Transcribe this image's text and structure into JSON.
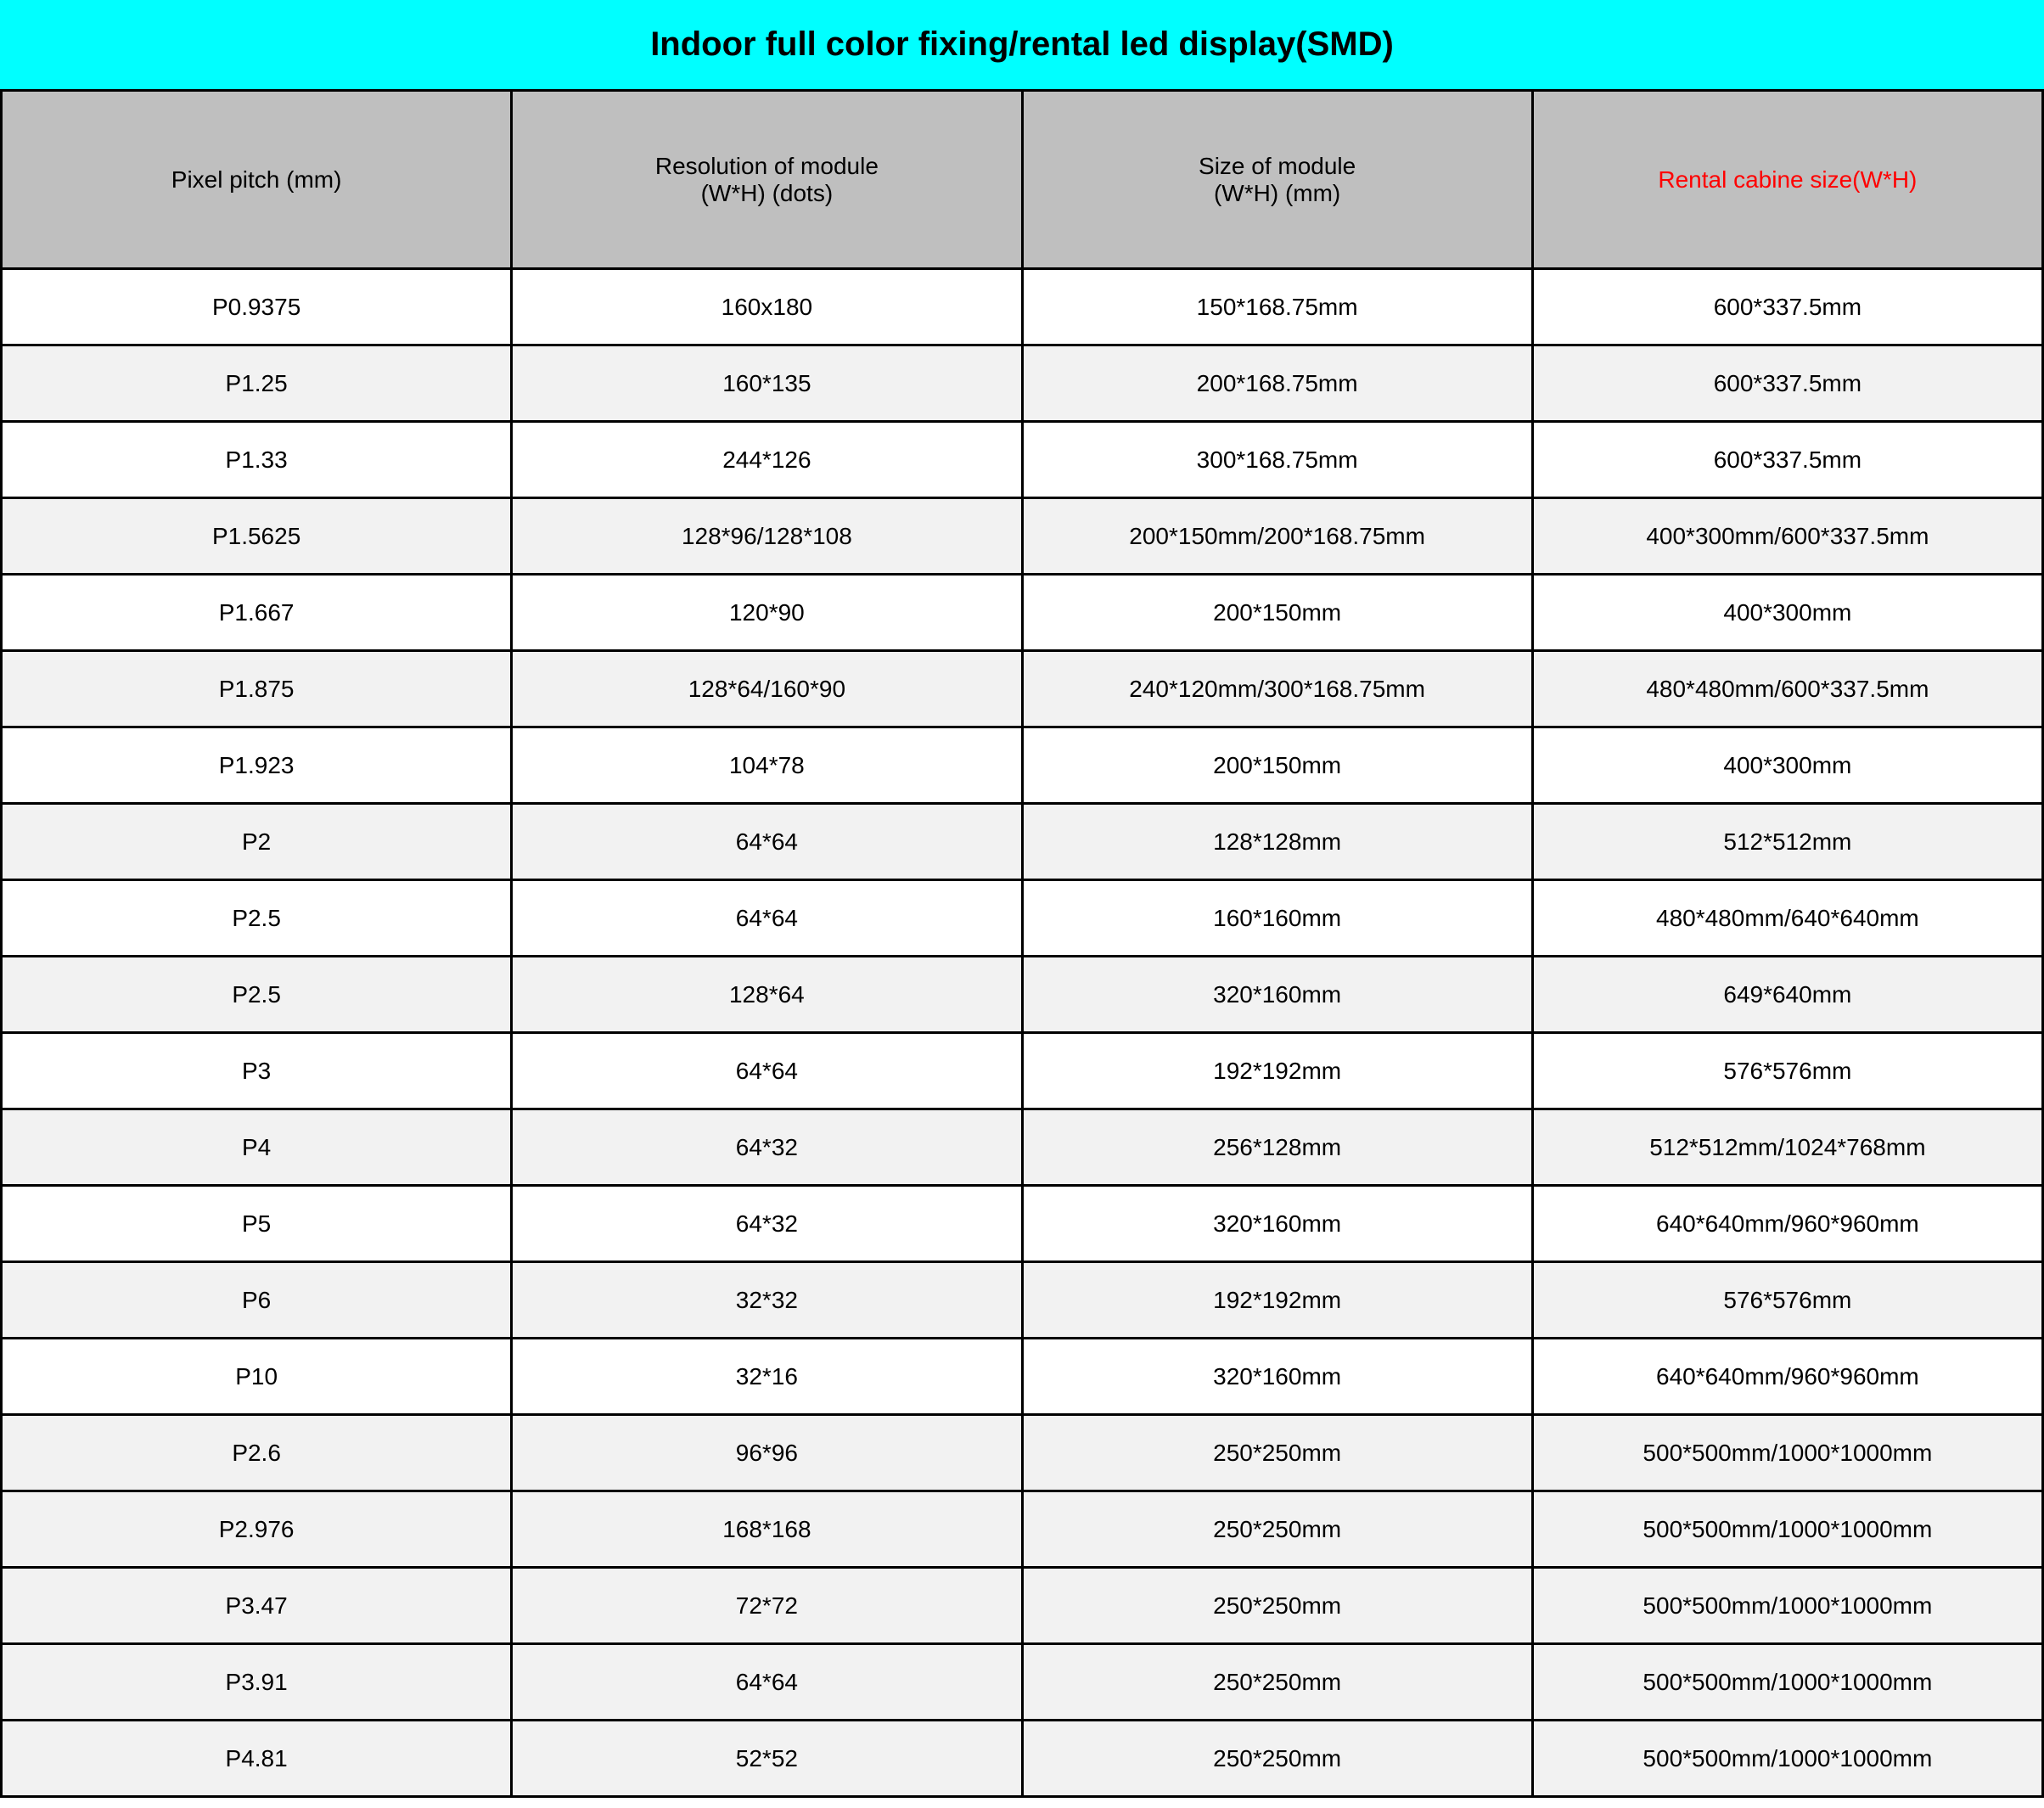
{
  "title": "Indoor full color fixing/rental led display(SMD)",
  "colors": {
    "title_bg": "#00ffff",
    "header_bg": "#bfbfbf",
    "row_white": "#ffffff",
    "row_grey": "#f2f2f2",
    "border": "#000000",
    "text": "#000000",
    "red_text": "#ff0000"
  },
  "columns": [
    {
      "label": "Pixel pitch (mm)",
      "red": false
    },
    {
      "label": "Resolution of module\n(W*H) (dots)",
      "red": false
    },
    {
      "label": "Size of module\n(W*H) (mm)",
      "red": false
    },
    {
      "label": "Rental cabine size(W*H)",
      "red": true
    }
  ],
  "rows": [
    {
      "bg": "white",
      "cells": [
        "P0.9375",
        "160x180",
        "150*168.75mm",
        "600*337.5mm"
      ]
    },
    {
      "bg": "grey",
      "cells": [
        "P1.25",
        "160*135",
        "200*168.75mm",
        "600*337.5mm"
      ]
    },
    {
      "bg": "white",
      "cells": [
        "P1.33",
        "244*126",
        "300*168.75mm",
        "600*337.5mm"
      ]
    },
    {
      "bg": "grey",
      "cells": [
        "P1.5625",
        "128*96/128*108",
        "200*150mm/200*168.75mm",
        "400*300mm/600*337.5mm"
      ]
    },
    {
      "bg": "white",
      "cells": [
        "P1.667",
        "120*90",
        "200*150mm",
        "400*300mm"
      ]
    },
    {
      "bg": "grey",
      "cells": [
        "P1.875",
        "128*64/160*90",
        "240*120mm/300*168.75mm",
        "480*480mm/600*337.5mm"
      ]
    },
    {
      "bg": "white",
      "cells": [
        "P1.923",
        "104*78",
        "200*150mm",
        "400*300mm"
      ]
    },
    {
      "bg": "grey",
      "cells": [
        "P2",
        "64*64",
        "128*128mm",
        "512*512mm"
      ]
    },
    {
      "bg": "white",
      "cells": [
        "P2.5",
        "64*64",
        "160*160mm",
        "480*480mm/640*640mm"
      ]
    },
    {
      "bg": "grey",
      "cells": [
        "P2.5",
        "128*64",
        "320*160mm",
        "649*640mm"
      ]
    },
    {
      "bg": "white",
      "cells": [
        "P3",
        "64*64",
        "192*192mm",
        "576*576mm"
      ]
    },
    {
      "bg": "grey",
      "cells": [
        "P4",
        "64*32",
        "256*128mm",
        "512*512mm/1024*768mm"
      ]
    },
    {
      "bg": "white",
      "cells": [
        "P5",
        "64*32",
        "320*160mm",
        "640*640mm/960*960mm"
      ]
    },
    {
      "bg": "grey",
      "cells": [
        "P6",
        "32*32",
        "192*192mm",
        "576*576mm"
      ]
    },
    {
      "bg": "white",
      "cells": [
        "P10",
        "32*16",
        "320*160mm",
        "640*640mm/960*960mm"
      ]
    },
    {
      "bg": "grey",
      "cells": [
        "P2.6",
        "96*96",
        "250*250mm",
        "500*500mm/1000*1000mm"
      ]
    },
    {
      "bg": "grey",
      "cells": [
        "P2.976",
        "168*168",
        "250*250mm",
        "500*500mm/1000*1000mm"
      ]
    },
    {
      "bg": "grey",
      "cells": [
        "P3.47",
        "72*72",
        "250*250mm",
        "500*500mm/1000*1000mm"
      ]
    },
    {
      "bg": "grey",
      "cells": [
        "P3.91",
        "64*64",
        "250*250mm",
        "500*500mm/1000*1000mm"
      ]
    },
    {
      "bg": "grey",
      "cells": [
        "P4.81",
        "52*52",
        "250*250mm",
        "500*500mm/1000*1000mm"
      ]
    }
  ]
}
